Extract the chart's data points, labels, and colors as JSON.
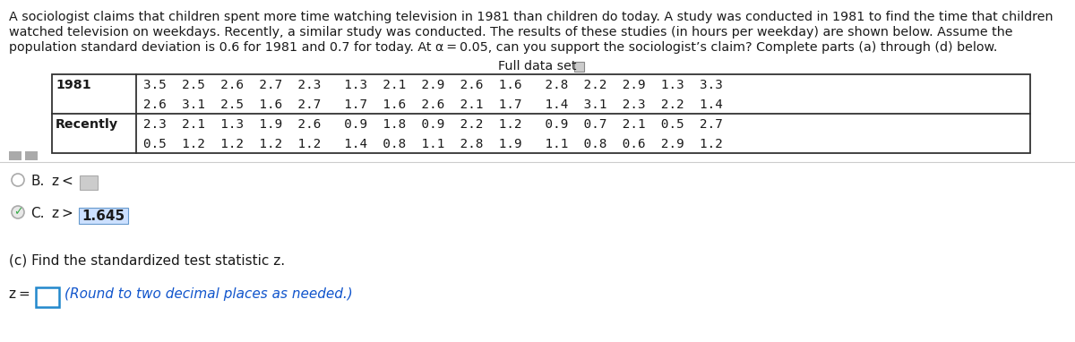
{
  "paragraph_lines": [
    "A sociologist claims that children spent more time watching television in 1981 than children do today. A study was conducted in 1981 to find the time that children",
    "watched television on weekdays. Recently, a similar study was conducted. The results of these studies (in hours per weekday) are shown below. Assume the",
    "population standard deviation is 0.6 for 1981 and 0.7 for today. At α = 0.05, can you support the sociologist’s claim? Complete parts (a) through (d) below."
  ],
  "full_data_set_label": "Full data set",
  "row1_label": "1981",
  "row1_data1": "3.5  2.5  2.6  2.7  2.3   1.3  2.1  2.9  2.6  1.6   2.8  2.2  2.9  1.3  3.3",
  "row1_data2": "2.6  3.1  2.5  1.6  2.7   1.7  1.6  2.6  2.1  1.7   1.4  3.1  2.3  2.2  1.4",
  "row2_label": "Recently",
  "row2_data1": "2.3  2.1  1.3  1.9  2.6   0.9  1.8  0.9  2.2  1.2   0.9  0.7  2.1  0.5  2.7",
  "row2_data2": "0.5  1.2  1.2  1.2  1.2   1.4  0.8  1.1  2.8  1.9   1.1  0.8  0.6  2.9  1.2",
  "option_b_text": "z <",
  "option_c_text": "z >",
  "option_c_value": "1.645",
  "part_c_label": "(c) Find the standardized test statistic z.",
  "answer_label": "z =",
  "answer_hint": "(Round to two decimal places as needed.)",
  "bg_color": "#ffffff",
  "text_color": "#1a1a1a",
  "blue_color": "#1155cc",
  "table_border_color": "#333333",
  "grey_box_color": "#bbbbbb",
  "highlight_color": "#cce0ff",
  "green_check_color": "#33aa44",
  "font_size_para": 10.3,
  "font_size_table": 10.3,
  "font_size_options": 11.0,
  "font_size_partc": 11.0,
  "font_size_answer": 11.0
}
